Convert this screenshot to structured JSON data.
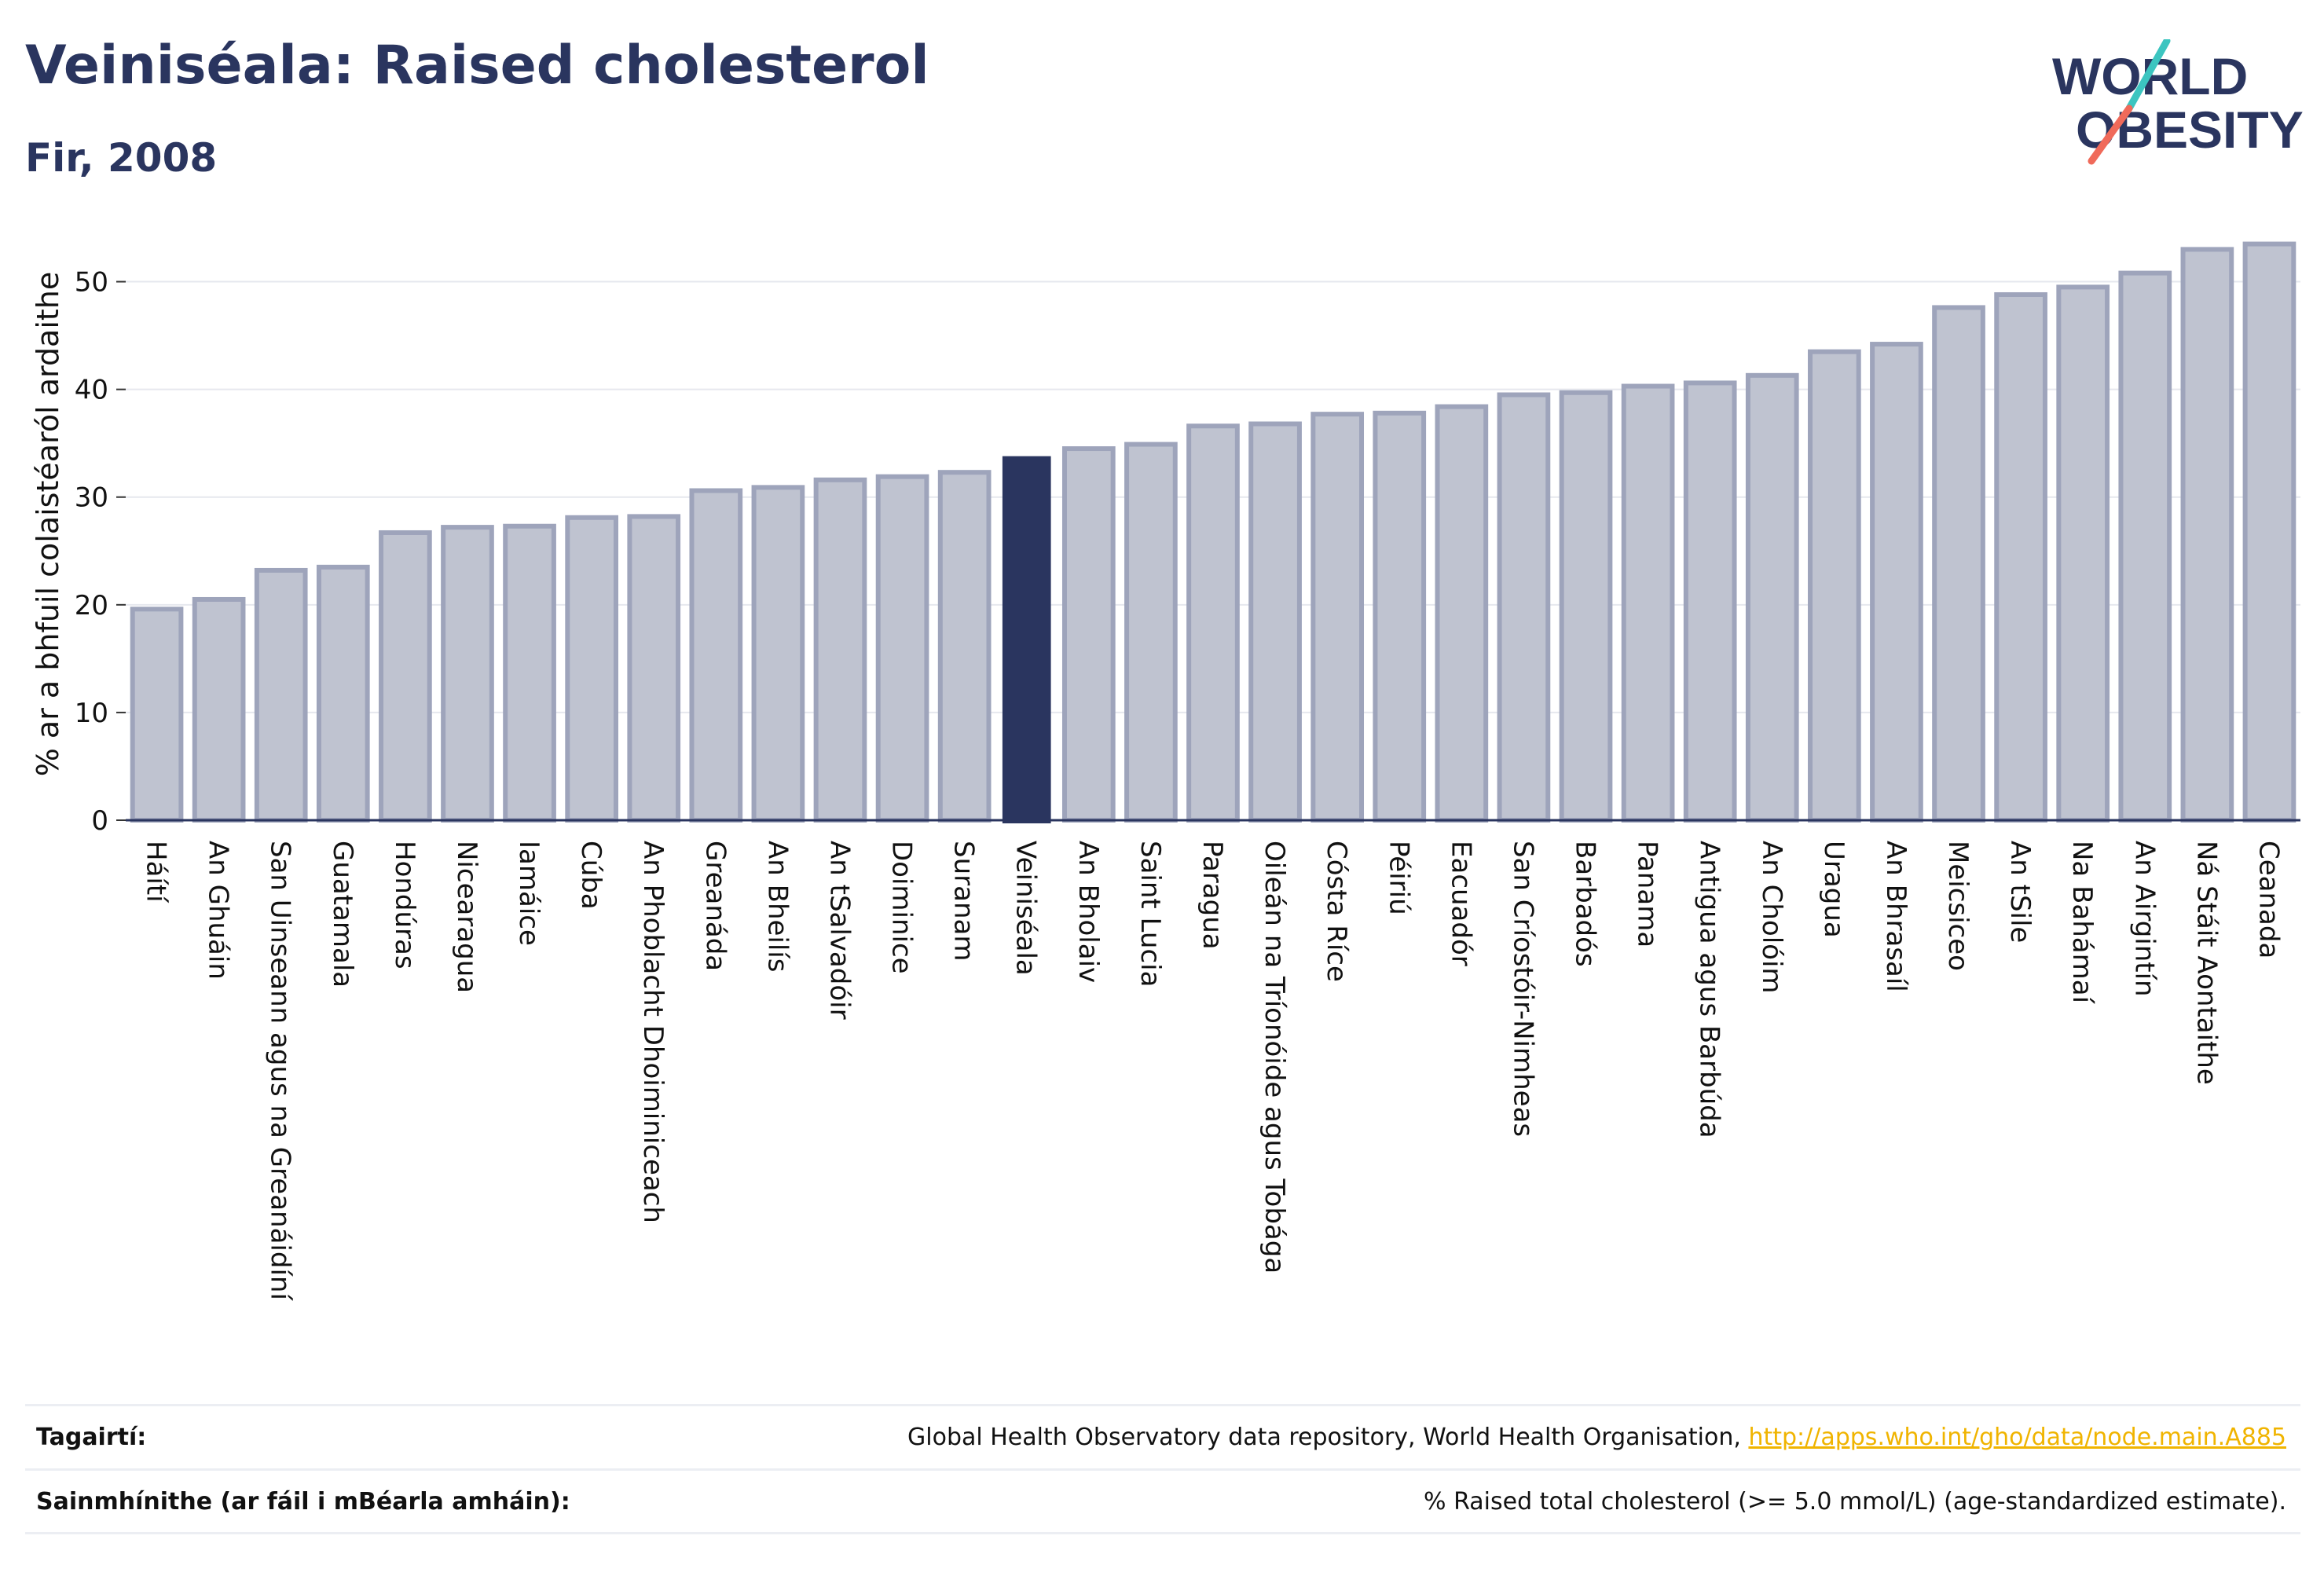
{
  "header": {
    "title": "Veiniséala: Raised cholesterol",
    "subtitle": "Fir, 2008"
  },
  "logo": {
    "line1": "WORLD",
    "line2": "OBESITY"
  },
  "colors": {
    "primary": "#2a355f",
    "bar_fill": "#bfc3d0",
    "bar_stroke": "#9ea4bb",
    "highlight": "#2a355f",
    "gridline": "#e6e8ee",
    "link": "#f0b400",
    "logo_teal": "#3cc5c0",
    "logo_coral": "#f06a5a"
  },
  "chart_data": {
    "type": "bar",
    "ylabel": "% ar a bhfuil colaistéaról ardaithe",
    "ylim": [
      0,
      55
    ],
    "yticks": [
      0,
      10,
      20,
      30,
      40,
      50
    ],
    "grid": true,
    "highlight_category": "Veiniséala",
    "categories": [
      "Háítí",
      "An Ghuáin",
      "San Uinseann agus na Greanáidíní",
      "Guatamala",
      "Hondúras",
      "Nicearagua",
      "Iamáice",
      "Cúba",
      "An Phoblacht Dhoiminiceach",
      "Greanáda",
      "An Bheilís",
      "An tSalvadóir",
      "Doiminice",
      "Suranam",
      "Veiniséala",
      "An Bholaiv",
      "Saint Lucia",
      "Paragua",
      "Oileán na Tríonóide agus Tobága",
      "Cósta Ríce",
      "Péiriú",
      "Eacuadór",
      "San Críostóir-Nimheas",
      "Barbadós",
      "Panama",
      "Antigua agus Barbúda",
      "An Cholóim",
      "Uragua",
      "An Bhrasaíl",
      "Meicsiceo",
      "An tSile",
      "Na Bahámaí",
      "An Airgintín",
      "Ná Stáit Aontaithe",
      "Ceanada"
    ],
    "values": [
      19.6,
      20.5,
      23.2,
      23.5,
      26.7,
      27.2,
      27.3,
      28.1,
      28.2,
      30.6,
      30.9,
      31.6,
      31.9,
      32.3,
      33.8,
      34.5,
      34.9,
      36.6,
      36.8,
      37.7,
      37.8,
      38.4,
      39.5,
      39.7,
      40.3,
      40.6,
      41.3,
      43.5,
      44.2,
      47.6,
      48.8,
      49.5,
      50.8,
      53.0,
      53.5
    ]
  },
  "footer": {
    "references_label": "Tagairtí:",
    "references_text": "Global Health Observatory data repository, World Health Organisation, ",
    "references_link": "http://apps.who.int/gho/data/node.main.A885",
    "definitions_label": "Sainmhínithe (ar fáil i mBéarla amháin):",
    "definitions_text": "% Raised total cholesterol (>= 5.0 mmol/L) (age-standardized estimate)."
  }
}
